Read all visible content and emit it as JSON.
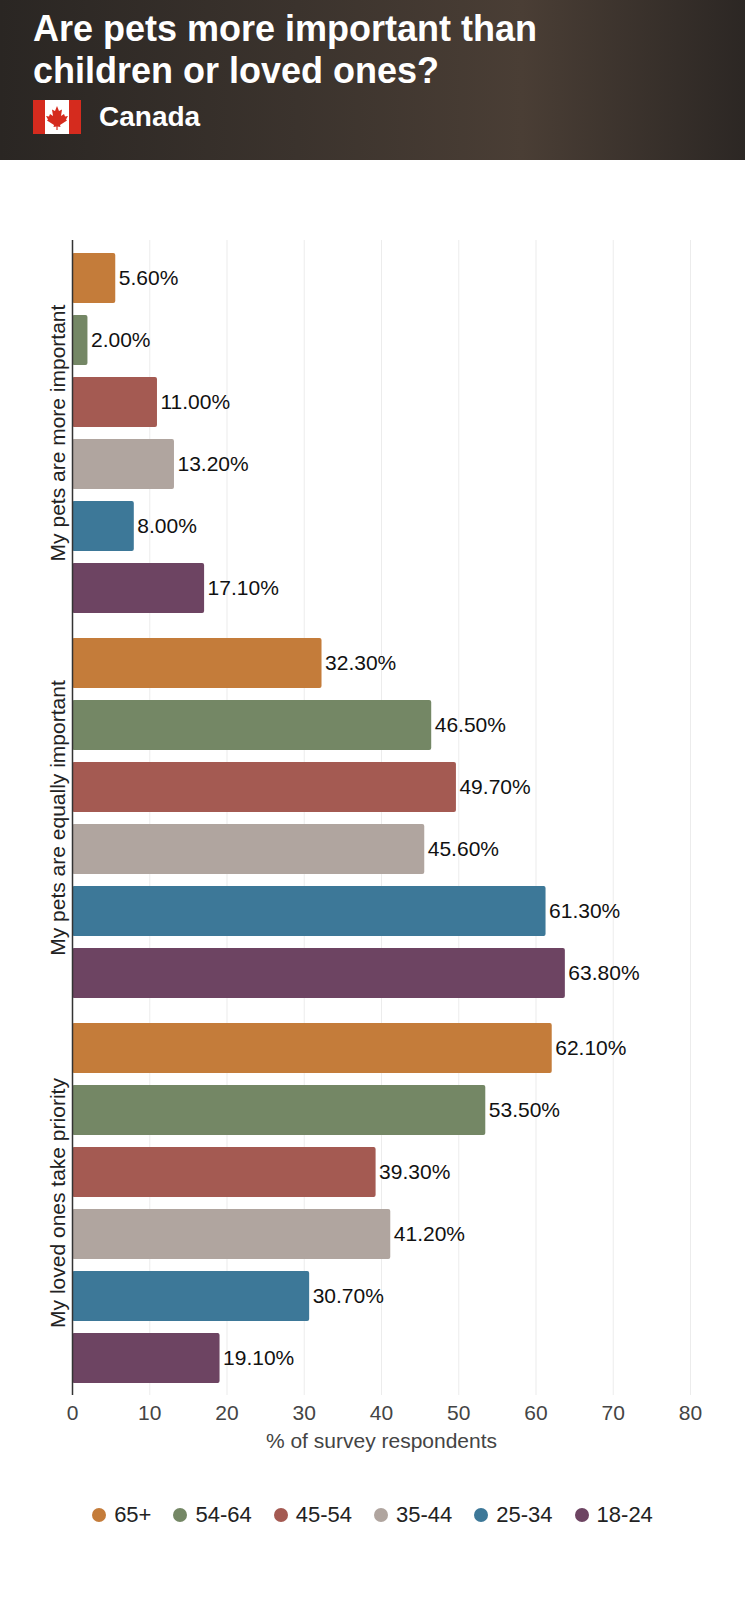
{
  "chart_data": {
    "type": "bar",
    "title": "Are pets more important than children or loved ones?",
    "subtitle": "Canada",
    "orientation": "horizontal",
    "data_labels": true,
    "grid": true,
    "legend": "bottom",
    "categories": [
      "My pets are more important",
      "My pets are equally important",
      "My loved ones take priority"
    ],
    "xlabel": "% of survey respondents",
    "xlim": [
      0,
      80
    ],
    "xticks": [
      0,
      10,
      20,
      30,
      40,
      50,
      60,
      70,
      80
    ],
    "series": [
      {
        "name": "65+",
        "color": "#c47c3a",
        "values": [
          5.6,
          32.3,
          62.1
        ],
        "value_labels": [
          "5.60%",
          "32.30%",
          "62.10%"
        ]
      },
      {
        "name": "54-64",
        "color": "#748765",
        "values": [
          2.0,
          46.5,
          53.5
        ],
        "value_labels": [
          "2.00%",
          "46.50%",
          "53.50%"
        ]
      },
      {
        "name": "45-54",
        "color": "#a45a52",
        "values": [
          11.0,
          49.7,
          39.3
        ],
        "value_labels": [
          "11.00%",
          "49.70%",
          "39.30%"
        ]
      },
      {
        "name": "35-44",
        "color": "#b0a59f",
        "values": [
          13.2,
          45.6,
          41.2
        ],
        "value_labels": [
          "13.20%",
          "45.60%",
          "41.20%"
        ]
      },
      {
        "name": "25-34",
        "color": "#3d7898",
        "values": [
          8.0,
          61.3,
          30.7
        ],
        "value_labels": [
          "8.00%",
          "61.30%",
          "30.70%"
        ]
      },
      {
        "name": "18-24",
        "color": "#6d4462",
        "values": [
          17.1,
          63.8,
          19.1
        ],
        "value_labels": [
          "17.10%",
          "63.80%",
          "19.10%"
        ]
      }
    ]
  }
}
